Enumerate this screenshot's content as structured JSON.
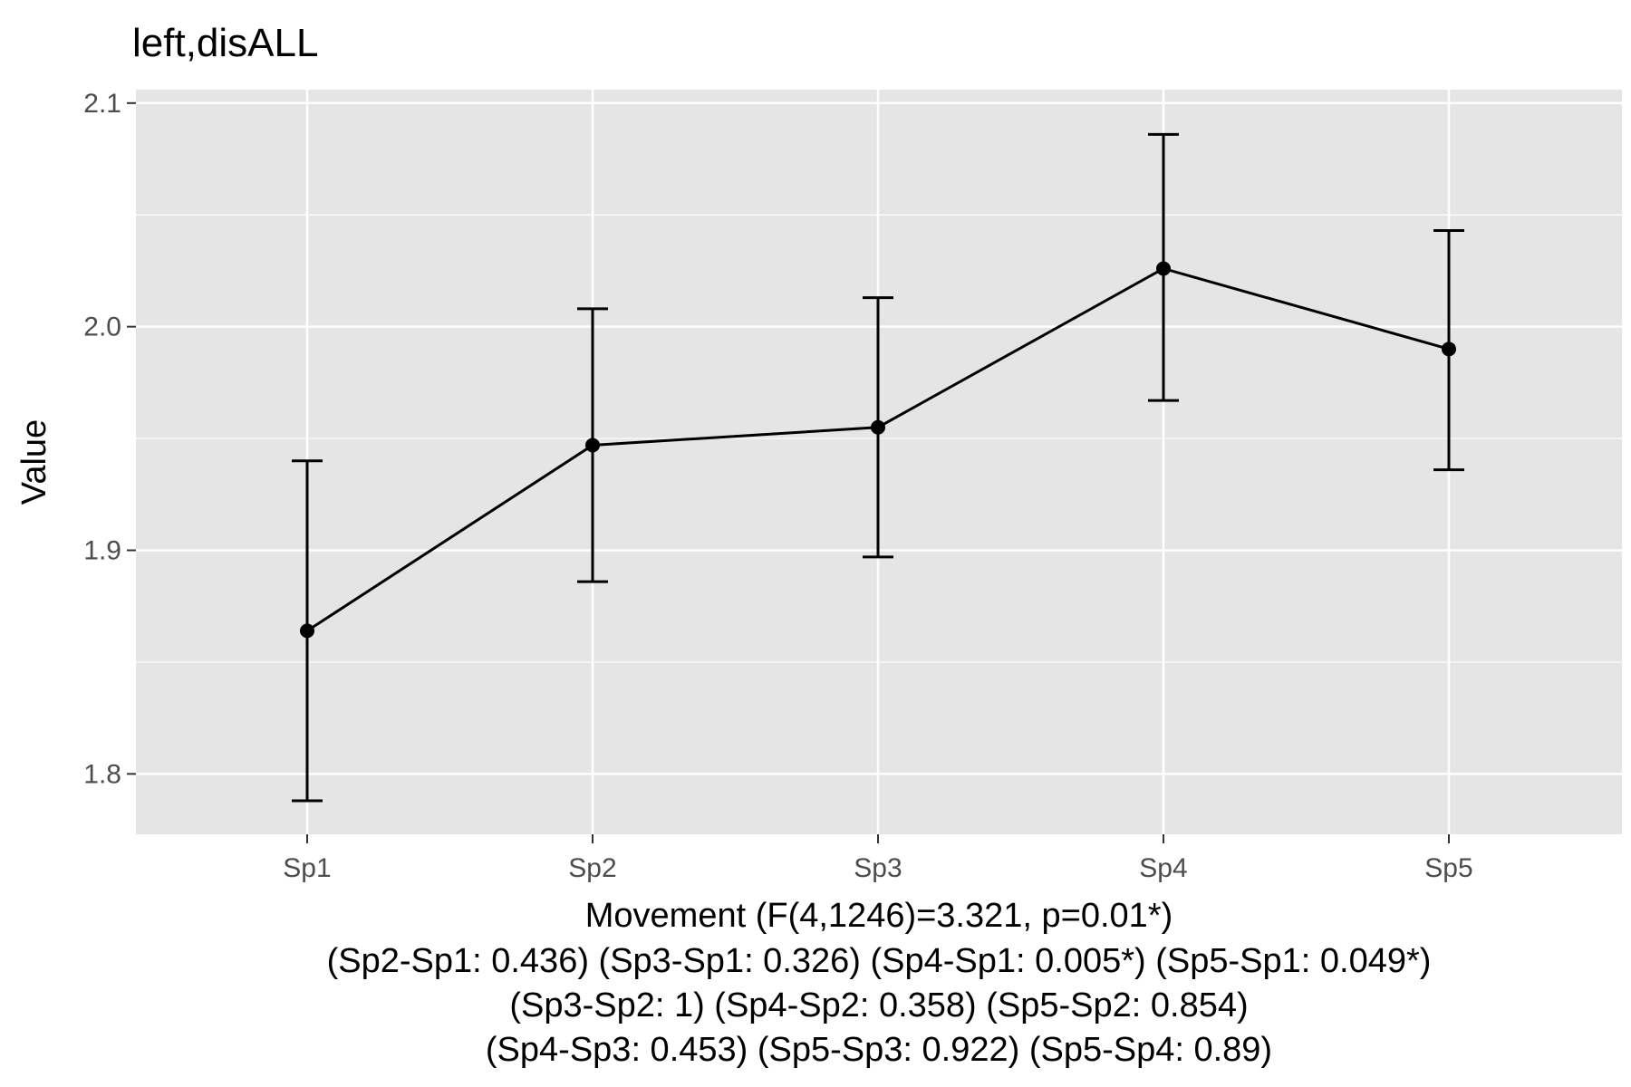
{
  "chart_data": {
    "type": "line",
    "title": "left,disALL",
    "ylabel": "Value",
    "xlabel_lines": [
      "Movement (F(4,1246)=3.321, p=0.01*)",
      "(Sp2-Sp1: 0.436) (Sp3-Sp1: 0.326) (Sp4-Sp1: 0.005*) (Sp5-Sp1: 0.049*)",
      "(Sp3-Sp2: 1) (Sp4-Sp2: 0.358) (Sp5-Sp2: 0.854)",
      "(Sp4-Sp3: 0.453) (Sp5-Sp3: 0.922) (Sp5-Sp4: 0.89)"
    ],
    "categories": [
      "Sp1",
      "Sp2",
      "Sp3",
      "Sp4",
      "Sp5"
    ],
    "values": [
      1.864,
      1.947,
      1.955,
      2.026,
      1.99
    ],
    "error_low": [
      1.788,
      1.886,
      1.897,
      1.967,
      1.936
    ],
    "error_high": [
      1.94,
      2.008,
      2.013,
      2.086,
      2.043
    ],
    "ylim": [
      1.773,
      2.106
    ],
    "yticks": [
      1.8,
      1.9,
      2.0,
      2.1
    ],
    "ytick_labels": [
      "1.8",
      "1.9",
      "2.0",
      "2.1"
    ],
    "grid": true,
    "legend": "none",
    "colors": {
      "panel_background": "#e5e5e5",
      "grid": "#ffffff",
      "series": "#000000",
      "tick_text": "#4d4d4d"
    }
  }
}
